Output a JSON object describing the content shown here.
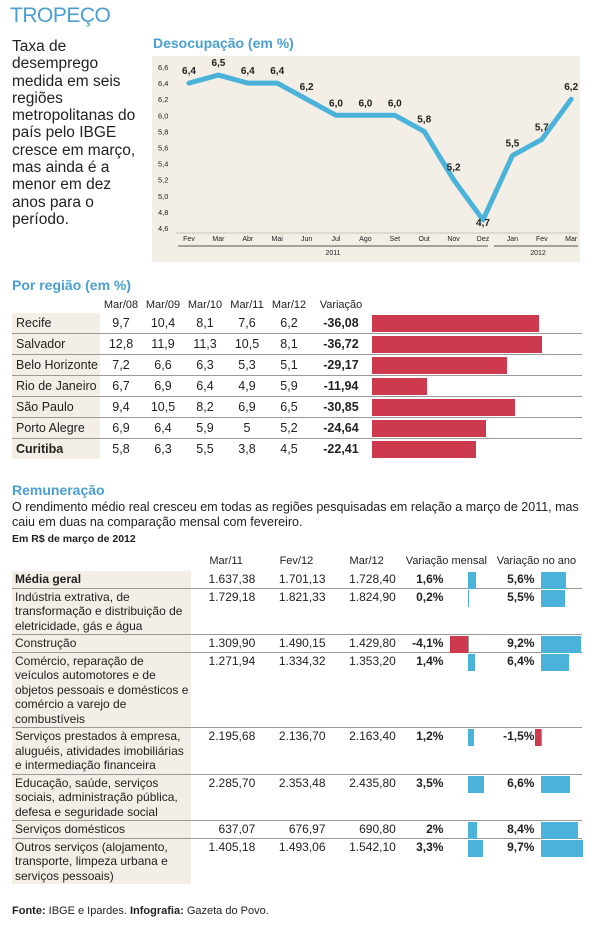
{
  "kicker": "TROPEÇO",
  "intro": "Taxa de desemprego medida em seis regiões metropolitanas do país pelo IBGE cresce em março, mas ainda é a menor em dez anos para o período.",
  "colors": {
    "accent": "#4a9fd0",
    "line": "#4bb2d9",
    "negative": "#cd3a4e",
    "panel": "#f3efe6"
  },
  "chart_data": [
    {
      "type": "line",
      "title": "Desocupação (em %)",
      "x": [
        "Fev",
        "Mar",
        "Abr",
        "Mai",
        "Jun",
        "Jul",
        "Ago",
        "Set",
        "Out",
        "Nov",
        "Dez",
        "Jan",
        "Fev",
        "Mar"
      ],
      "year_labels": [
        "2011",
        "2012"
      ],
      "yticks": [
        "6,6",
        "6,4",
        "6,2",
        "6,0",
        "5,8",
        "5,6",
        "5,4",
        "5,2",
        "5,0",
        "4,8",
        "4,6"
      ],
      "ylim": [
        4.6,
        6.6
      ],
      "values": [
        6.4,
        6.5,
        6.4,
        6.4,
        6.2,
        6.0,
        6.0,
        6.0,
        5.8,
        5.2,
        4.7,
        5.5,
        5.7,
        6.2
      ],
      "labels": [
        "6,4",
        "6,5",
        "6,4",
        "6,4",
        "6,2",
        "6,0",
        "6,0",
        "6,0",
        "5,8",
        "5,2",
        "4,7",
        "5,5",
        "5,7",
        "6,2"
      ]
    },
    {
      "type": "bar",
      "title": "Por região (em %)",
      "columns": [
        "Mar/08",
        "Mar/09",
        "Mar/10",
        "Mar/11",
        "Mar/12",
        "Variação"
      ],
      "rows": [
        {
          "name": "Recife",
          "values": [
            "9,7",
            "10,4",
            "8,1",
            "7,6",
            "6,2"
          ],
          "variation": "-36,08",
          "v": -36.08
        },
        {
          "name": "Salvador",
          "values": [
            "12,8",
            "11,9",
            "11,3",
            "10,5",
            "8,1"
          ],
          "variation": "-36,72",
          "v": -36.72
        },
        {
          "name": "Belo Horizonte",
          "values": [
            "7,2",
            "6,6",
            "6,3",
            "5,3",
            "5,1"
          ],
          "variation": "-29,17",
          "v": -29.17
        },
        {
          "name": "Rio de Janeiro",
          "values": [
            "6,7",
            "6,9",
            "6,4",
            "4,9",
            "5,9"
          ],
          "variation": "-11,94",
          "v": -11.94
        },
        {
          "name": "São Paulo",
          "values": [
            "9,4",
            "10,5",
            "8,2",
            "6,9",
            "6,5"
          ],
          "variation": "-30,85",
          "v": -30.85
        },
        {
          "name": "Porto Alegre",
          "values": [
            "6,9",
            "6,4",
            "5,9",
            "5",
            "5,2"
          ],
          "variation": "-24,64",
          "v": -24.64
        },
        {
          "name": "Curitiba",
          "values": [
            "5,8",
            "6,3",
            "5,5",
            "3,8",
            "4,5"
          ],
          "variation": "-22,41",
          "v": -22.41
        }
      ]
    },
    {
      "type": "bar",
      "title": "Remuneração",
      "columns": [
        "Mar/11",
        "Fev/12",
        "Mar/12",
        "Variação mensal",
        "Variação no ano"
      ],
      "rows": [
        {
          "name": "Média geral",
          "values": [
            "1.637,38",
            "1.701,13",
            "1.728,40"
          ],
          "vm": "1,6%",
          "vm_n": 1.6,
          "va": "5,6%",
          "va_n": 5.6
        },
        {
          "name": "Indústria extrativa, de transformação e distribuição de eletricidade, gás e água",
          "values": [
            "1.729,18",
            "1.821,33",
            "1.824,90"
          ],
          "vm": "0,2%",
          "vm_n": 0.2,
          "va": "5,5%",
          "va_n": 5.5
        },
        {
          "name": "Construção",
          "values": [
            "1.309,90",
            "1.490,15",
            "1.429,80"
          ],
          "vm": "-4,1%",
          "vm_n": -4.1,
          "va": "9,2%",
          "va_n": 9.2
        },
        {
          "name": "Comércio, reparação de veículos automotores e de objetos pessoais e domésticos e comércio a varejo de combustíveis",
          "values": [
            "1.271,94",
            "1.334,32",
            "1.353,20"
          ],
          "vm": "1,4%",
          "vm_n": 1.4,
          "va": "6,4%",
          "va_n": 6.4
        },
        {
          "name": "Serviços prestados à empresa, aluguéis, atividades imobiliárias e intermediação financeira",
          "values": [
            "2.195,68",
            "2.136,70",
            "2.163,40"
          ],
          "vm": "1,2%",
          "vm_n": 1.2,
          "va": "-1,5%",
          "va_n": -1.5
        },
        {
          "name": "Educação, saúde, serviços sociais, administração pública, defesa e seguridade social",
          "values": [
            "2.285,70",
            "2.353,48",
            "2.435,80"
          ],
          "vm": "3,5%",
          "vm_n": 3.5,
          "va": "6,6%",
          "va_n": 6.6
        },
        {
          "name": "Serviços domésticos",
          "values": [
            "637,07",
            "676,97",
            "690,80"
          ],
          "vm": "2%",
          "vm_n": 2.0,
          "va": "8,4%",
          "va_n": 8.4
        },
        {
          "name": "Outros serviços (alojamento, transporte, limpeza urbana e serviços pessoais)",
          "values": [
            "1.405,18",
            "1.493,06",
            "1.542,10"
          ],
          "vm": "3,3%",
          "vm_n": 3.3,
          "va": "9,7%",
          "va_n": 9.7
        }
      ]
    }
  ],
  "remuneration": {
    "intro": "O rendimento médio real cresceu em todas as regiões pesquisadas em relação a março de 2011, mas caiu em duas na comparação mensal com fevereiro.",
    "unit": "Em R$ de março de 2012"
  },
  "source": {
    "label": "Fonte:",
    "text": " IBGE e Ipardes. ",
    "credit_label": "Infografia:",
    "credit": " Gazeta do Povo."
  }
}
